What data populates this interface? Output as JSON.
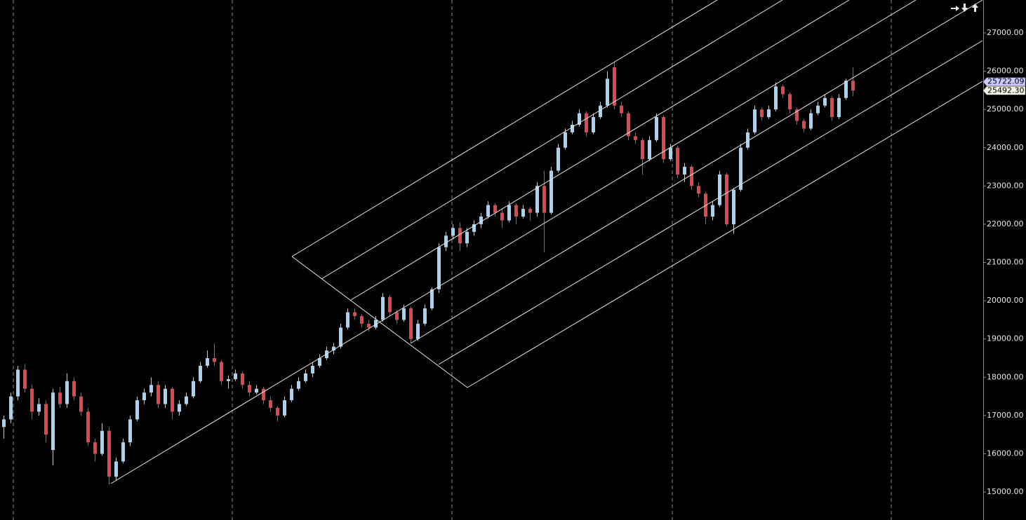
{
  "chart_data": {
    "type": "candlestick",
    "up_color": "#a6d3f2",
    "down_color": "#e0474c",
    "ylim": [
      14270,
      27860
    ],
    "yticks": [
      {
        "value": 15000,
        "label": "15000.00"
      },
      {
        "value": 16000,
        "label": "16000.00"
      },
      {
        "value": 17000,
        "label": "17000.00"
      },
      {
        "value": 18000,
        "label": "18000.00"
      },
      {
        "value": 19000,
        "label": "19000.00"
      },
      {
        "value": 20000,
        "label": "20000.00"
      },
      {
        "value": 21000,
        "label": "21000.00"
      },
      {
        "value": 22000,
        "label": "22000.00"
      },
      {
        "value": 23000,
        "label": "23000.00"
      },
      {
        "value": 24000,
        "label": "24000.00"
      },
      {
        "value": 25000,
        "label": "25000.00"
      },
      {
        "value": 26000,
        "label": "26000.00"
      },
      {
        "value": 27000,
        "label": "27000.00"
      }
    ],
    "price_labels": [
      {
        "value": 25722.09,
        "label": "25722.09"
      },
      {
        "value": 25492.3,
        "label": "25492.30"
      }
    ],
    "ohlc": [
      [
        16700,
        17000,
        16400,
        16900
      ],
      [
        16900,
        17600,
        16800,
        17500
      ],
      [
        17500,
        18300,
        17400,
        18200
      ],
      [
        18200,
        18350,
        17600,
        17700
      ],
      [
        17700,
        17800,
        16900,
        17100
      ],
      [
        17100,
        17450,
        17000,
        17300
      ],
      [
        17300,
        17400,
        16300,
        16500
      ],
      [
        16100,
        17700,
        15700,
        17600
      ],
      [
        17600,
        17750,
        17200,
        17300
      ],
      [
        17300,
        18100,
        17200,
        17900
      ],
      [
        17900,
        18000,
        17400,
        17500
      ],
      [
        17500,
        17600,
        17000,
        17100
      ],
      [
        17100,
        17200,
        16200,
        16300
      ],
      [
        16300,
        16400,
        15800,
        16000
      ],
      [
        16000,
        16800,
        15950,
        16600
      ],
      [
        16600,
        16700,
        15200,
        15400
      ],
      [
        15400,
        15900,
        15300,
        15800
      ],
      [
        15800,
        16400,
        15750,
        16300
      ],
      [
        16300,
        17000,
        16200,
        16900
      ],
      [
        16900,
        17500,
        16850,
        17400
      ],
      [
        17400,
        17700,
        17300,
        17600
      ],
      [
        17600,
        18000,
        17500,
        17800
      ],
      [
        17800,
        17900,
        17200,
        17300
      ],
      [
        17300,
        17800,
        17200,
        17700
      ],
      [
        17700,
        17750,
        16900,
        17100
      ],
      [
        17100,
        17400,
        17000,
        17300
      ],
      [
        17300,
        17600,
        17250,
        17500
      ],
      [
        17500,
        18000,
        17450,
        17900
      ],
      [
        17900,
        18400,
        17850,
        18300
      ],
      [
        18300,
        18700,
        18250,
        18500
      ],
      [
        18500,
        18880,
        18300,
        18400
      ],
      [
        18400,
        18450,
        17800,
        17900
      ],
      [
        17900,
        18050,
        17700,
        17950
      ],
      [
        17950,
        18200,
        17900,
        18100
      ],
      [
        18100,
        18150,
        17700,
        17800
      ],
      [
        17800,
        17900,
        17500,
        17600
      ],
      [
        17600,
        17800,
        17550,
        17700
      ],
      [
        17700,
        17750,
        17300,
        17400
      ],
      [
        17400,
        17500,
        17100,
        17200
      ],
      [
        17200,
        17250,
        16850,
        17000
      ],
      [
        17000,
        17500,
        16950,
        17400
      ],
      [
        17400,
        17800,
        17350,
        17700
      ],
      [
        17700,
        18000,
        17650,
        17900
      ],
      [
        17900,
        18200,
        17850,
        18100
      ],
      [
        18100,
        18400,
        18000,
        18300
      ],
      [
        18300,
        18600,
        18250,
        18500
      ],
      [
        18500,
        18800,
        18450,
        18700
      ],
      [
        18700,
        18900,
        18600,
        18800
      ],
      [
        18800,
        19400,
        18750,
        19300
      ],
      [
        19300,
        19800,
        19250,
        19700
      ],
      [
        19700,
        19800,
        19500,
        19600
      ],
      [
        19600,
        19650,
        19300,
        19400
      ],
      [
        19400,
        19500,
        19200,
        19300
      ],
      [
        19300,
        19600,
        19250,
        19500
      ],
      [
        19500,
        20200,
        19450,
        20100
      ],
      [
        20100,
        20150,
        19600,
        19700
      ],
      [
        19700,
        19750,
        19400,
        19500
      ],
      [
        19500,
        19900,
        19450,
        19800
      ],
      [
        19800,
        19850,
        18900,
        19000
      ],
      [
        19000,
        19500,
        18950,
        19400
      ],
      [
        19400,
        19900,
        19350,
        19800
      ],
      [
        19800,
        20350,
        19750,
        20300
      ],
      [
        20300,
        21500,
        20200,
        21400
      ],
      [
        21400,
        21800,
        21300,
        21700
      ],
      [
        21700,
        22000,
        21600,
        21900
      ],
      [
        21900,
        22050,
        21300,
        21500
      ],
      [
        21500,
        21900,
        21400,
        21800
      ],
      [
        21800,
        22100,
        21700,
        22000
      ],
      [
        22000,
        22300,
        21900,
        22200
      ],
      [
        22200,
        22600,
        22150,
        22500
      ],
      [
        22500,
        22550,
        22200,
        22300
      ],
      [
        22300,
        22400,
        21900,
        22100
      ],
      [
        22100,
        22600,
        22050,
        22500
      ],
      [
        22500,
        22550,
        22000,
        22200
      ],
      [
        22200,
        22500,
        22150,
        22400
      ],
      [
        22400,
        22450,
        22100,
        22300
      ],
      [
        22300,
        23100,
        22200,
        23000
      ],
      [
        23000,
        23400,
        21270,
        22300
      ],
      [
        22300,
        23500,
        22250,
        23400
      ],
      [
        23400,
        24100,
        23350,
        24000
      ],
      [
        24000,
        24500,
        23950,
        24400
      ],
      [
        24400,
        24700,
        24350,
        24600
      ],
      [
        24600,
        25000,
        24550,
        24900
      ],
      [
        24900,
        24950,
        24300,
        24400
      ],
      [
        24400,
        24900,
        24350,
        24800
      ],
      [
        24800,
        25200,
        24750,
        25100
      ],
      [
        25100,
        26000,
        25050,
        25800
      ],
      [
        26100,
        26250,
        25000,
        25100
      ],
      [
        25100,
        25200,
        24800,
        24900
      ],
      [
        24900,
        24950,
        24200,
        24300
      ],
      [
        24300,
        24400,
        24100,
        24200
      ],
      [
        24200,
        24250,
        23300,
        23700
      ],
      [
        23700,
        24300,
        23650,
        24200
      ],
      [
        24200,
        24900,
        24150,
        24800
      ],
      [
        24800,
        24850,
        23600,
        23700
      ],
      [
        23700,
        24100,
        23650,
        24000
      ],
      [
        24000,
        24050,
        23200,
        23300
      ],
      [
        23300,
        23600,
        23100,
        23500
      ],
      [
        23500,
        23550,
        22900,
        23000
      ],
      [
        23000,
        23100,
        22700,
        22800
      ],
      [
        22800,
        22850,
        22000,
        22200
      ],
      [
        22200,
        22600,
        22100,
        22500
      ],
      [
        22500,
        23400,
        22450,
        23300
      ],
      [
        23300,
        23350,
        21950,
        22000
      ],
      [
        22000,
        22950,
        21750,
        22900
      ],
      [
        22900,
        24100,
        22850,
        24000
      ],
      [
        24000,
        24500,
        23950,
        24400
      ],
      [
        24400,
        25100,
        24350,
        25000
      ],
      [
        25000,
        25050,
        24700,
        24800
      ],
      [
        24800,
        25100,
        24750,
        25000
      ],
      [
        25000,
        25700,
        24950,
        25600
      ],
      [
        25600,
        25650,
        25300,
        25400
      ],
      [
        25400,
        25450,
        24900,
        25000
      ],
      [
        25000,
        25050,
        24600,
        24700
      ],
      [
        24700,
        24750,
        24400,
        24500
      ],
      [
        24500,
        25000,
        24450,
        24900
      ],
      [
        24900,
        25200,
        24850,
        25100
      ],
      [
        25100,
        25400,
        25050,
        25300
      ],
      [
        25300,
        25350,
        24700,
        24800
      ],
      [
        24800,
        25400,
        24750,
        25300
      ],
      [
        25300,
        25800,
        25250,
        25750
      ],
      [
        25750,
        26100,
        25350,
        25492.3
      ]
    ]
  }
}
